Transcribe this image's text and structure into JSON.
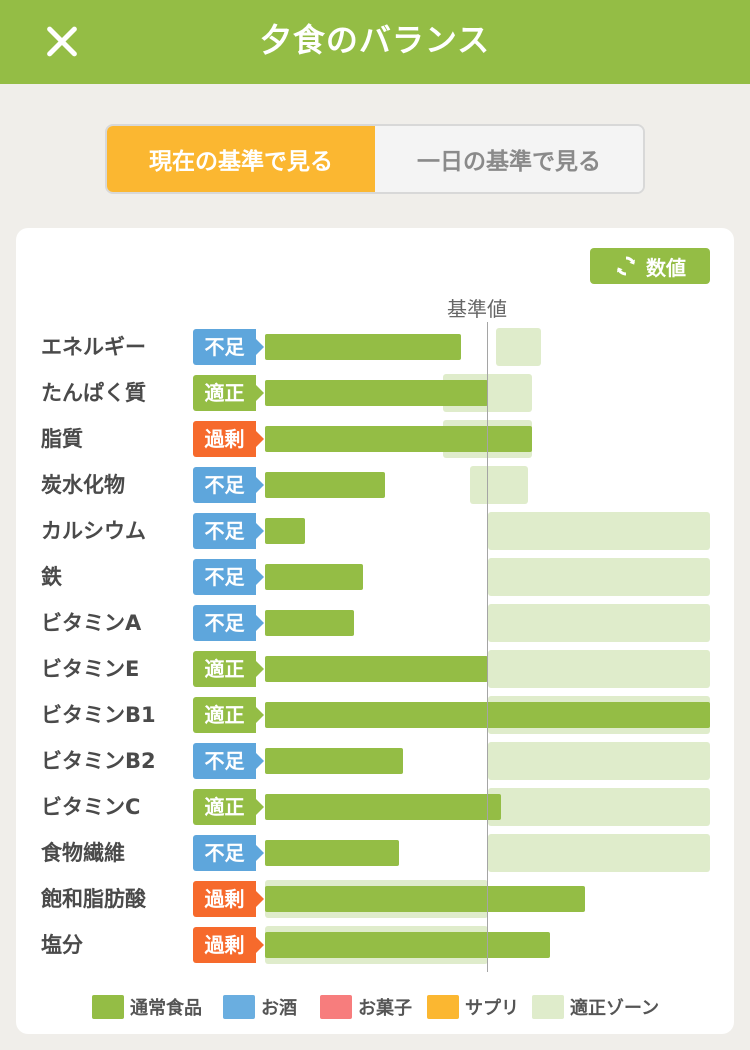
{
  "header": {
    "title": "夕食のバランス",
    "close_icon": "close-icon"
  },
  "toggle": {
    "active_label": "現在の基準で見る",
    "inactive_label": "一日の基準で見る"
  },
  "value_button": {
    "label": "数値",
    "icon": "refresh-icon"
  },
  "reference_label": "基準値",
  "status_colors": {
    "不足": "#5ea6dc",
    "適正": "#94bd45",
    "過剰": "#f66a2c"
  },
  "nutrients": [
    {
      "name": "エネルギー",
      "status": "不足",
      "value_pct": 44,
      "zone": [
        52,
        62
      ]
    },
    {
      "name": "たんぱく質",
      "status": "適正",
      "value_pct": 50,
      "zone": [
        40,
        60
      ]
    },
    {
      "name": "脂質",
      "status": "過剰",
      "value_pct": 60,
      "zone": [
        40,
        60
      ]
    },
    {
      "name": "炭水化物",
      "status": "不足",
      "value_pct": 27,
      "zone": [
        46,
        59
      ]
    },
    {
      "name": "カルシウム",
      "status": "不足",
      "value_pct": 9,
      "zone": [
        50,
        100
      ]
    },
    {
      "name": "鉄",
      "status": "不足",
      "value_pct": 22,
      "zone": [
        50,
        100
      ]
    },
    {
      "name": "ビタミンA",
      "status": "不足",
      "value_pct": 20,
      "zone": [
        50,
        100
      ]
    },
    {
      "name": "ビタミンE",
      "status": "適正",
      "value_pct": 50,
      "zone": [
        50,
        100
      ]
    },
    {
      "name": "ビタミンB1",
      "status": "適正",
      "value_pct": 100,
      "zone": [
        50,
        100
      ]
    },
    {
      "name": "ビタミンB2",
      "status": "不足",
      "value_pct": 31,
      "zone": [
        50,
        100
      ]
    },
    {
      "name": "ビタミンC",
      "status": "適正",
      "value_pct": 53,
      "zone": [
        50,
        100
      ]
    },
    {
      "name": "食物繊維",
      "status": "不足",
      "value_pct": 30,
      "zone": [
        50,
        100
      ]
    },
    {
      "name": "飽和脂肪酸",
      "status": "過剰",
      "value_pct": 72,
      "zone": [
        0,
        50
      ]
    },
    {
      "name": "塩分",
      "status": "過剰",
      "value_pct": 64,
      "zone": [
        0,
        50
      ]
    }
  ],
  "legend": [
    {
      "label": "通常食品",
      "color": "#94bd45"
    },
    {
      "label": "お酒",
      "color": "#6aaee0"
    },
    {
      "label": "お菓子",
      "color": "#f77d7d"
    },
    {
      "label": "サプリ",
      "color": "#fbb731"
    },
    {
      "label": "適正ゾーン",
      "color": "#dfeccb"
    }
  ]
}
